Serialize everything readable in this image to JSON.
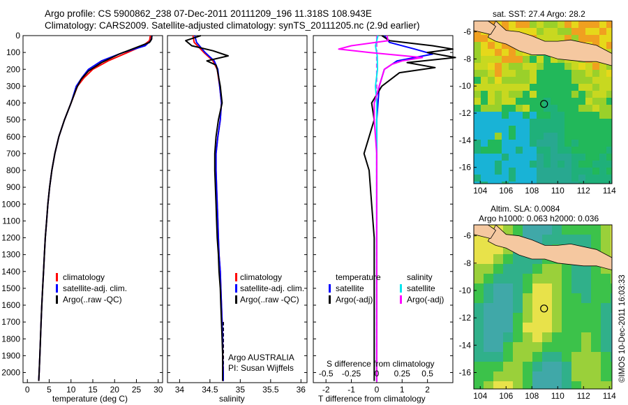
{
  "header": {
    "line1": "Argo profile: CS 5900862_238 07-Dec-2011 20111209_196 11.318S 108.943E",
    "line2": "Climatology: CARS2009. Satellite-adjusted climatology: synTS_20111205.nc (2.9d earlier)"
  },
  "colors": {
    "climatology": "#ff0000",
    "satellite": "#0000ff",
    "argo": "#000000",
    "sal_satellite": "#00e5ee",
    "sal_argo": "#ff00ff",
    "land": "#f5c8a0"
  },
  "chart_data": [
    {
      "type": "line",
      "name": "temperature-profile",
      "xlabel": "temperature (deg C)",
      "ylabel": "",
      "xlim": [
        -1,
        31
      ],
      "ylim": [
        2060,
        0
      ],
      "xticks": [
        0,
        5,
        10,
        15,
        20,
        25,
        30
      ],
      "yticks": [
        0,
        100,
        200,
        300,
        400,
        500,
        600,
        700,
        800,
        900,
        1000,
        1100,
        1200,
        1300,
        1400,
        1500,
        1600,
        1700,
        1800,
        1900,
        2000
      ],
      "legend": [
        "climatology",
        "satellite-adj. clim.",
        "Argo(..raw -QC)"
      ],
      "series": [
        {
          "name": "climatology",
          "color": "#ff0000",
          "points": [
            [
              28.2,
              0
            ],
            [
              28,
              30
            ],
            [
              26.5,
              60
            ],
            [
              23,
              100
            ],
            [
              18.5,
              150
            ],
            [
              15,
              200
            ],
            [
              13,
              250
            ],
            [
              11.5,
              300
            ],
            [
              10,
              400
            ],
            [
              8.5,
              500
            ],
            [
              7.2,
              600
            ],
            [
              6.3,
              700
            ],
            [
              5.6,
              800
            ],
            [
              5.1,
              900
            ],
            [
              4.7,
              1000
            ],
            [
              4.4,
              1100
            ],
            [
              4.1,
              1200
            ],
            [
              3.9,
              1300
            ],
            [
              3.7,
              1400
            ],
            [
              3.5,
              1500
            ],
            [
              3.3,
              1600
            ],
            [
              3.15,
              1700
            ],
            [
              3,
              1800
            ],
            [
              2.85,
              1900
            ],
            [
              2.7,
              2000
            ],
            [
              2.6,
              2050
            ]
          ]
        },
        {
          "name": "satellite-adj. clim.",
          "color": "#0000ff",
          "points": [
            [
              28.6,
              0
            ],
            [
              28.3,
              30
            ],
            [
              27,
              60
            ],
            [
              22,
              100
            ],
            [
              17,
              150
            ],
            [
              14,
              200
            ],
            [
              12.5,
              250
            ],
            [
              11.2,
              300
            ],
            [
              10,
              400
            ],
            [
              8.5,
              500
            ],
            [
              7.2,
              600
            ],
            [
              6.3,
              700
            ],
            [
              5.6,
              800
            ],
            [
              5.1,
              900
            ],
            [
              4.7,
              1000
            ],
            [
              4.4,
              1100
            ],
            [
              4.1,
              1200
            ],
            [
              3.9,
              1300
            ],
            [
              3.7,
              1400
            ],
            [
              3.5,
              1500
            ],
            [
              3.3,
              1600
            ],
            [
              3.15,
              1700
            ],
            [
              3,
              1800
            ],
            [
              2.85,
              1900
            ],
            [
              2.7,
              2000
            ],
            [
              2.6,
              2050
            ]
          ]
        },
        {
          "name": "Argo(..raw -QC)",
          "color": "#000000",
          "points": [
            [
              28.5,
              0
            ],
            [
              28.5,
              20
            ],
            [
              28,
              40
            ],
            [
              25,
              70
            ],
            [
              21,
              110
            ],
            [
              17,
              160
            ],
            [
              14,
              210
            ],
            [
              12.3,
              260
            ],
            [
              11.3,
              310
            ],
            [
              10,
              400
            ],
            [
              8.5,
              500
            ],
            [
              7.2,
              600
            ],
            [
              6.3,
              700
            ],
            [
              5.6,
              800
            ],
            [
              5.1,
              900
            ],
            [
              4.7,
              1000
            ],
            [
              4.4,
              1100
            ],
            [
              4.1,
              1200
            ],
            [
              3.9,
              1300
            ],
            [
              3.7,
              1400
            ],
            [
              3.5,
              1500
            ],
            [
              3.3,
              1600
            ],
            [
              3.15,
              1700
            ],
            [
              3,
              1800
            ],
            [
              2.85,
              1900
            ],
            [
              2.7,
              2000
            ],
            [
              2.6,
              2050
            ]
          ]
        }
      ]
    },
    {
      "type": "line",
      "name": "salinity-profile",
      "xlabel": "salinity",
      "xlim": [
        33.8,
        36.1
      ],
      "ylim": [
        2060,
        0
      ],
      "xticks": [
        34,
        34.5,
        35,
        35.5,
        36
      ],
      "legend": [
        "climatology",
        "satellite-adj. clim.",
        "Argo(..raw -QC)"
      ],
      "annotations": [
        "Argo AUSTRALIA",
        "PI: Susan Wijffels"
      ],
      "series": [
        {
          "name": "climatology",
          "color": "#ff0000",
          "points": [
            [
              34.22,
              0
            ],
            [
              34.24,
              40
            ],
            [
              34.4,
              100
            ],
            [
              34.55,
              150
            ],
            [
              34.62,
              200
            ],
            [
              34.66,
              300
            ],
            [
              34.69,
              400
            ],
            [
              34.67,
              500
            ],
            [
              34.63,
              600
            ],
            [
              34.6,
              700
            ],
            [
              34.6,
              800
            ],
            [
              34.61,
              900
            ],
            [
              34.62,
              1000
            ],
            [
              34.63,
              1100
            ],
            [
              34.64,
              1200
            ],
            [
              34.65,
              1300
            ],
            [
              34.67,
              1400
            ],
            [
              34.68,
              1500
            ],
            [
              34.69,
              1600
            ],
            [
              34.7,
              1700
            ],
            [
              34.71,
              1800
            ],
            [
              34.71,
              1900
            ],
            [
              34.72,
              2000
            ],
            [
              34.72,
              2050
            ]
          ]
        },
        {
          "name": "satellite-adj. clim.",
          "color": "#0000ff",
          "points": [
            [
              34.25,
              0
            ],
            [
              34.28,
              40
            ],
            [
              34.42,
              100
            ],
            [
              34.57,
              150
            ],
            [
              34.63,
              200
            ],
            [
              34.66,
              300
            ],
            [
              34.69,
              400
            ],
            [
              34.67,
              500
            ],
            [
              34.63,
              600
            ],
            [
              34.6,
              700
            ],
            [
              34.6,
              800
            ],
            [
              34.61,
              900
            ],
            [
              34.62,
              1000
            ],
            [
              34.63,
              1100
            ],
            [
              34.64,
              1200
            ],
            [
              34.65,
              1300
            ],
            [
              34.67,
              1400
            ],
            [
              34.68,
              1500
            ],
            [
              34.69,
              1600
            ],
            [
              34.7,
              1700
            ],
            [
              34.71,
              1800
            ],
            [
              34.71,
              1900
            ],
            [
              34.72,
              2000
            ],
            [
              34.72,
              2050
            ]
          ]
        },
        {
          "name": "Argo(..raw -QC)",
          "color": "#000000",
          "points": [
            [
              34.35,
              0
            ],
            [
              34.1,
              30
            ],
            [
              34.2,
              60
            ],
            [
              34.55,
              90
            ],
            [
              34.8,
              120
            ],
            [
              34.45,
              150
            ],
            [
              34.6,
              175
            ],
            [
              34.62,
              200
            ],
            [
              34.67,
              300
            ],
            [
              34.7,
              400
            ],
            [
              34.64,
              500
            ],
            [
              34.6,
              600
            ],
            [
              34.58,
              700
            ],
            [
              34.58,
              800
            ],
            [
              34.59,
              900
            ],
            [
              34.6,
              1000
            ],
            [
              34.61,
              1100
            ],
            [
              34.62,
              1200
            ],
            [
              34.64,
              1300
            ],
            [
              34.65,
              1400
            ],
            [
              34.67,
              1500
            ],
            [
              34.68,
              1600
            ],
            [
              34.69,
              1700
            ],
            [
              34.7,
              1800
            ],
            [
              34.71,
              1900
            ],
            [
              34.71,
              2000
            ],
            [
              34.71,
              2050
            ]
          ]
        }
      ]
    },
    {
      "type": "line",
      "name": "difference-profile",
      "xlabel": "T difference from climatology",
      "top_axis_label": "S difference from climatology",
      "xlim": [
        -2.5,
        3
      ],
      "ylim": [
        2060,
        0
      ],
      "xticks": [
        -2,
        -1,
        0,
        1,
        2
      ],
      "sticks": [
        "-0.5",
        "-0.25",
        "0",
        "0.25",
        "0.5"
      ],
      "legend_left": [
        "temperature",
        "satellite",
        "Argo(-adj)"
      ],
      "legend_right": [
        "salinity",
        "satellite",
        "Argo(-adj)"
      ],
      "series": [
        {
          "name": "T satellite",
          "color": "#0000ff",
          "points": [
            [
              0.3,
              0
            ],
            [
              0.5,
              40
            ],
            [
              1.5,
              80
            ],
            [
              2.2,
              110
            ],
            [
              0.8,
              150
            ],
            [
              0.3,
              200
            ],
            [
              0.1,
              300
            ],
            [
              0,
              500
            ],
            [
              0,
              2050
            ]
          ]
        },
        {
          "name": "T Argo(-adj)",
          "color": "#000000",
          "points": [
            [
              0.2,
              0
            ],
            [
              0.5,
              30
            ],
            [
              2.2,
              60
            ],
            [
              3,
              80
            ],
            [
              2,
              100
            ],
            [
              3.1,
              130
            ],
            [
              1.2,
              160
            ],
            [
              2.3,
              190
            ],
            [
              0.9,
              220
            ],
            [
              0.2,
              300
            ],
            [
              -0.2,
              400
            ],
            [
              -0.1,
              500
            ],
            [
              -0.3,
              600
            ],
            [
              -0.5,
              700
            ],
            [
              -0.3,
              800
            ],
            [
              -0.2,
              1000
            ],
            [
              -0.1,
              1200
            ],
            [
              -0.1,
              1500
            ],
            [
              -0.1,
              1800
            ],
            [
              -0.1,
              2050
            ]
          ]
        },
        {
          "name": "S satellite",
          "color": "#00e5ee",
          "points": [
            [
              0.05,
              0
            ],
            [
              -0.05,
              60
            ],
            [
              0.02,
              120
            ],
            [
              0.03,
              200
            ],
            [
              -0.05,
              300
            ],
            [
              0,
              400
            ],
            [
              0,
              2050
            ]
          ]
        },
        {
          "name": "S Argo(-adj)",
          "color": "#ff00ff",
          "points": [
            [
              0.4,
              0
            ],
            [
              0.45,
              30
            ],
            [
              -1.0,
              60
            ],
            [
              -1.5,
              80
            ],
            [
              -0.3,
              100
            ],
            [
              1.8,
              130
            ],
            [
              1.0,
              150
            ],
            [
              0.6,
              170
            ],
            [
              0.3,
              200
            ],
            [
              0.1,
              300
            ],
            [
              -0.1,
              400
            ],
            [
              -0.1,
              500
            ],
            [
              0,
              700
            ],
            [
              0,
              900
            ],
            [
              0,
              2050
            ]
          ]
        }
      ]
    }
  ],
  "sst_map": {
    "title": "sat. SST: 27.4  Argo: 28.2",
    "xticks": [
      "104",
      "106",
      "108",
      "110",
      "112",
      "114"
    ],
    "yticks": [
      "-6",
      "-8",
      "-10",
      "-12",
      "-14",
      "-16"
    ],
    "marker": {
      "lon": 108.943,
      "lat": -11.318
    }
  },
  "sla_map": {
    "title1": "Altim. SLA: 0.0084",
    "title2": "Argo h1000: 0.063 h2000: 0.036",
    "xticks": [
      "104",
      "106",
      "108",
      "110",
      "112",
      "114"
    ],
    "yticks": [
      "-6",
      "-8",
      "-10",
      "-12",
      "-14",
      "-16"
    ],
    "marker": {
      "lon": 108.943,
      "lat": -11.318
    }
  },
  "footer": {
    "imos": "©IMOS 10-Dec-2011 16:03:33"
  }
}
